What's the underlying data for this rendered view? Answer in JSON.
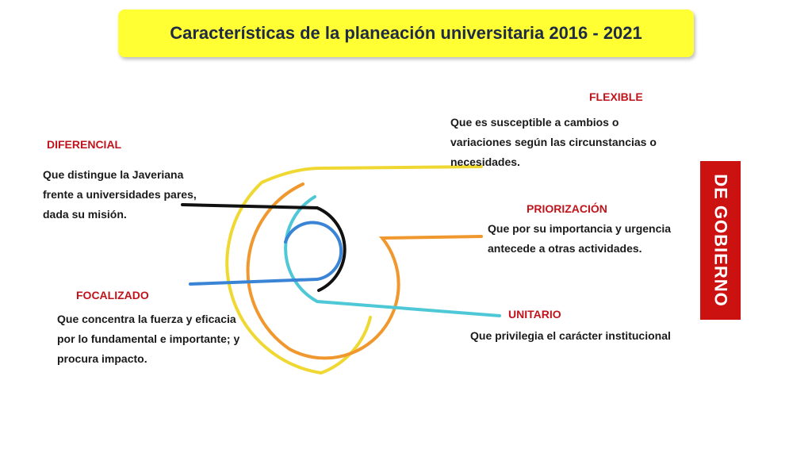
{
  "title": "Características de la planeación universitaria 2016 - 2021",
  "side_label": "DE GOBIERNO",
  "colors": {
    "title_bg": "#ffff33",
    "label": "#c0141c",
    "side_bg": "#cc1111",
    "yellow": "#f0d832",
    "orange": "#f0982e",
    "cyan": "#4ec8d6",
    "blue": "#3a84d6",
    "black": "#111111"
  },
  "characteristics": {
    "flexible": {
      "label": "FLEXIBLE",
      "lines": [
        "Que es susceptible a cambios o",
        "variaciones según las circunstancias o",
        "necesidades."
      ]
    },
    "diferencial": {
      "label": "DIFERENCIAL",
      "lines": [
        "Que distingue la Javeriana",
        "frente a universidades pares,",
        "dada su misión."
      ]
    },
    "priorizacion": {
      "label": "PRIORIZACIÓN",
      "lines": [
        "Que por su importancia y urgencia",
        "antecede a otras actividades."
      ]
    },
    "focalizado": {
      "label": "FOCALIZADO",
      "lines": [
        "Que concentra la fuerza y eficacia",
        "por lo fundamental e importante; y",
        "procura impacto."
      ]
    },
    "unitario": {
      "label": "UNITARIO",
      "lines": [
        "Que privilegia el carácter institucional"
      ]
    }
  }
}
